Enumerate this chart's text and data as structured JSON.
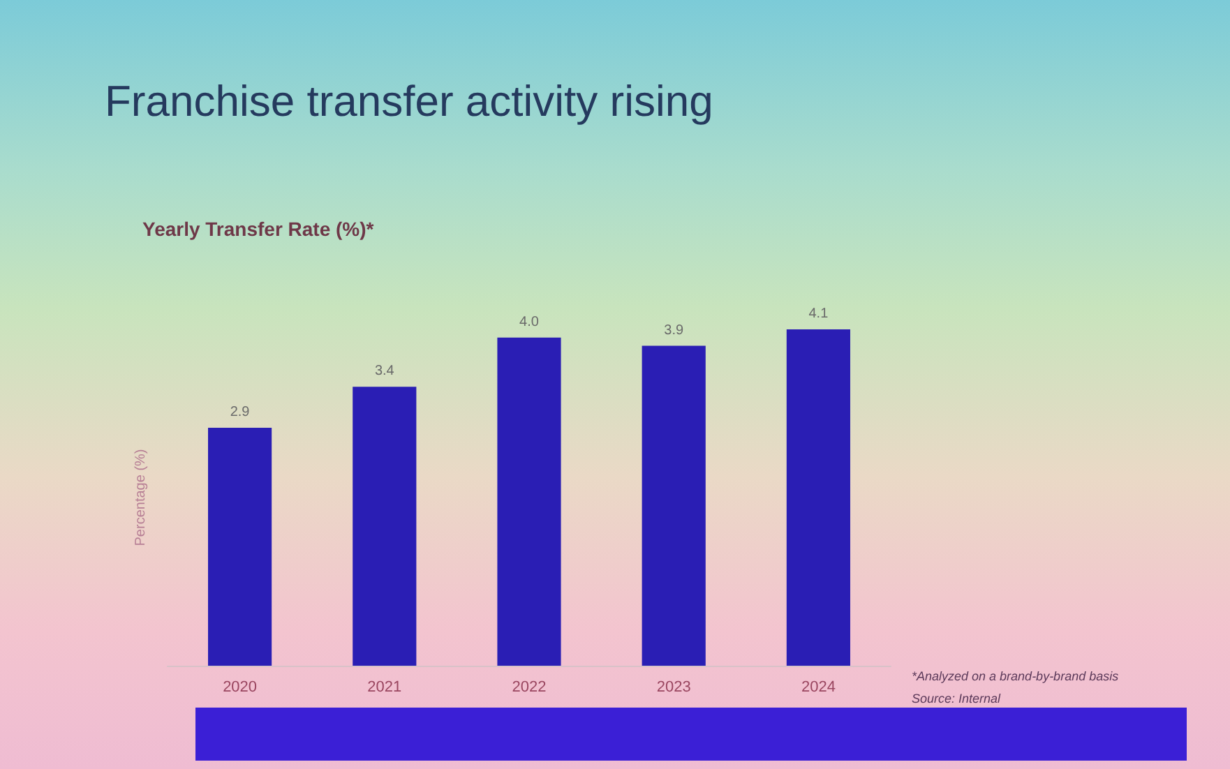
{
  "chart_data": {
    "type": "bar",
    "title": "Franchise transfer activity rising",
    "subtitle": "Yearly Transfer Rate (%)*",
    "ylabel": "Percentage (%)",
    "categories": [
      "2020",
      "2021",
      "2022",
      "2023",
      "2024"
    ],
    "values": [
      2.9,
      3.4,
      4.0,
      3.9,
      4.1
    ],
    "value_labels": [
      "2.9",
      "3.4",
      "4.0",
      "3.9",
      "4.1"
    ],
    "color": "#2a1eb4",
    "grid": false,
    "tick_labels": "x",
    "annotations": [
      "*Analyzed on a brand-by-brand basis",
      "Source: Internal"
    ]
  }
}
